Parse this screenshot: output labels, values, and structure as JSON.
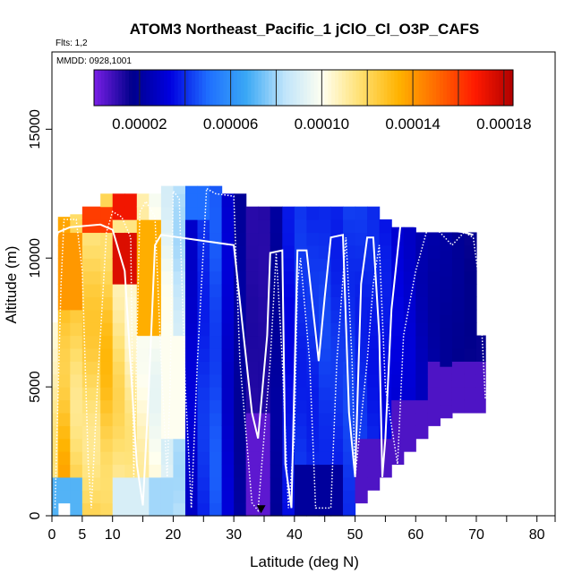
{
  "chart_data": {
    "type": "heatmap",
    "title": "ATOM3 Northeast_Pacific_1 jClO_Cl_O3P_CAFS",
    "subtitle_flights": "Flts: 1,2",
    "subtitle_dates": "MMDD: 0928,1001",
    "xlabel": "Latitude (deg N)",
    "ylabel": "Altitude (m)",
    "xlim": [
      0,
      83
    ],
    "ylim": [
      0,
      18000
    ],
    "x_ticks": [
      0,
      5,
      10,
      20,
      30,
      40,
      50,
      60,
      70,
      80
    ],
    "x_minor_ticks": [
      15,
      25,
      35,
      45,
      55,
      65,
      75,
      83
    ],
    "y_ticks": [
      0,
      5000,
      10000,
      15000
    ],
    "colorbar": {
      "min": 0.0,
      "max": 0.000184,
      "tick_values": [
        2e-05,
        6e-05,
        0.0001,
        0.00014,
        0.00018
      ],
      "tick_labels": [
        "0.00002",
        "0.00006",
        "0.00010",
        "0.00014",
        "0.00018"
      ],
      "divisions": [
        2e-05,
        4e-05,
        6e-05,
        8e-05,
        0.0001,
        0.00012,
        0.00014,
        0.00016,
        0.00018
      ]
    },
    "colors": [
      "#7a1fe6",
      "#00008b",
      "#0000e0",
      "#1f6fff",
      "#3aa8f5",
      "#bfe4fb",
      "#fffff0",
      "#ffe070",
      "#ffb300",
      "#ff6a00",
      "#ff1a00",
      "#b00000"
    ],
    "columns": [
      {
        "x": [
          -1,
          1
        ],
        "top": 7500,
        "bottom": 0,
        "base": 0.00011,
        "slope": 0.0
      },
      {
        "x": [
          1,
          3
        ],
        "top": 11600,
        "bottom": 500,
        "base": 0.00013,
        "slope": 0.0
      },
      {
        "x": [
          3,
          5
        ],
        "top": 11700,
        "bottom": 0,
        "base": 0.00012,
        "slope": 0.0
      },
      {
        "x": [
          5,
          8
        ],
        "top": 12000,
        "bottom": 0,
        "base": 0.00012,
        "slope": 0.0
      },
      {
        "x": [
          8,
          10
        ],
        "top": 12500,
        "bottom": 0,
        "base": 0.000125,
        "slope": 0.0
      },
      {
        "x": [
          10,
          12
        ],
        "top": 12500,
        "bottom": 0,
        "base": 0.000115,
        "slope": 0.0
      },
      {
        "x": [
          12,
          14
        ],
        "top": 12500,
        "bottom": 0,
        "base": 0.00011,
        "slope": 0.0
      },
      {
        "x": [
          14,
          16
        ],
        "top": 12500,
        "bottom": 0,
        "base": 0.000105,
        "slope": 0.0
      },
      {
        "x": [
          16,
          18
        ],
        "top": 12500,
        "bottom": 0,
        "base": 0.0001,
        "slope": 0.0
      },
      {
        "x": [
          18,
          20
        ],
        "top": 12800,
        "bottom": 0,
        "base": 9.5e-05,
        "slope": 0.0
      },
      {
        "x": [
          20,
          22
        ],
        "top": 12800,
        "bottom": 0,
        "base": 8.5e-05,
        "slope": 0.0
      },
      {
        "x": [
          22,
          24
        ],
        "top": 12800,
        "bottom": 0,
        "base": 3e-05,
        "slope": 0.0
      },
      {
        "x": [
          24,
          26
        ],
        "top": 12800,
        "bottom": 0,
        "base": 4e-05,
        "slope": 0.0
      },
      {
        "x": [
          26,
          28
        ],
        "top": 12800,
        "bottom": 0,
        "base": 4.5e-05,
        "slope": 0.0
      },
      {
        "x": [
          28,
          30
        ],
        "top": 12500,
        "bottom": 0,
        "base": 3e-05,
        "slope": 0.0
      },
      {
        "x": [
          30,
          32
        ],
        "top": 12500,
        "bottom": 0,
        "base": 2e-05,
        "slope": 0.0
      },
      {
        "x": [
          32,
          34
        ],
        "top": 12000,
        "bottom": 0,
        "base": 1.2e-05,
        "slope": 0.0
      },
      {
        "x": [
          34,
          36
        ],
        "top": 12000,
        "bottom": 0,
        "base": 1.2e-05,
        "slope": 0.0
      },
      {
        "x": [
          36,
          38
        ],
        "top": 12000,
        "bottom": 0,
        "base": 2e-05,
        "slope": 0.0
      },
      {
        "x": [
          38,
          40
        ],
        "top": 12000,
        "bottom": 0,
        "base": 3.5e-05,
        "slope": 0.0
      },
      {
        "x": [
          40,
          42
        ],
        "top": 12000,
        "bottom": 0,
        "base": 4e-05,
        "slope": 0.0
      },
      {
        "x": [
          42,
          44
        ],
        "top": 12000,
        "bottom": 0,
        "base": 4e-05,
        "slope": 0.0
      },
      {
        "x": [
          44,
          46
        ],
        "top": 12000,
        "bottom": 0,
        "base": 4.2e-05,
        "slope": 0.0
      },
      {
        "x": [
          46,
          48
        ],
        "top": 12000,
        "bottom": 0,
        "base": 4e-05,
        "slope": 0.0
      },
      {
        "x": [
          48,
          50
        ],
        "top": 12000,
        "bottom": 0,
        "base": 4.2e-05,
        "slope": 0.0
      },
      {
        "x": [
          50,
          52
        ],
        "top": 12000,
        "bottom": 500,
        "base": 4e-05,
        "slope": 0.0
      },
      {
        "x": [
          52,
          54
        ],
        "top": 12000,
        "bottom": 1000,
        "base": 3.8e-05,
        "slope": 0.0
      },
      {
        "x": [
          54,
          56
        ],
        "top": 11500,
        "bottom": 1500,
        "base": 3.6e-05,
        "slope": 0.0
      },
      {
        "x": [
          56,
          58
        ],
        "top": 11200,
        "bottom": 2000,
        "base": 3.2e-05,
        "slope": 0.0
      },
      {
        "x": [
          58,
          60
        ],
        "top": 11200,
        "bottom": 2500,
        "base": 3e-05,
        "slope": 0.0
      },
      {
        "x": [
          60,
          62
        ],
        "top": 11000,
        "bottom": 3000,
        "base": 2.5e-05,
        "slope": 0.0
      },
      {
        "x": [
          62,
          64
        ],
        "top": 11000,
        "bottom": 3500,
        "base": 2.2e-05,
        "slope": 0.0
      },
      {
        "x": [
          64,
          66
        ],
        "top": 11000,
        "bottom": 3800,
        "base": 2e-05,
        "slope": 0.0
      },
      {
        "x": [
          66,
          68
        ],
        "top": 11000,
        "bottom": 4000,
        "base": 1.8e-05,
        "slope": 0.0
      },
      {
        "x": [
          68,
          70
        ],
        "top": 11000,
        "bottom": 4000,
        "base": 1.6e-05,
        "slope": 0.0
      },
      {
        "x": [
          70,
          71.5
        ],
        "top": 7000,
        "bottom": 4000,
        "base": 1.5e-05,
        "slope": 0.0
      }
    ],
    "special_cells": [
      {
        "x": [
          10,
          14
        ],
        "y": [
          11500,
          12500
        ],
        "value": 0.00017
      },
      {
        "x": [
          5,
          10
        ],
        "y": [
          11000,
          12000
        ],
        "value": 0.00016
      },
      {
        "x": [
          10,
          18
        ],
        "y": [
          9000,
          11000
        ],
        "value": 0.000175
      },
      {
        "x": [
          2,
          5
        ],
        "y": [
          8000,
          11000
        ],
        "value": 0.00014
      },
      {
        "x": [
          14,
          18
        ],
        "y": [
          7000,
          11500
        ],
        "value": 0.000135
      },
      {
        "x": [
          18,
          22
        ],
        "y": [
          3000,
          7000
        ],
        "value": 0.0001
      },
      {
        "x": [
          0,
          5
        ],
        "y": [
          0,
          1500
        ],
        "value": 7e-05
      },
      {
        "x": [
          10,
          16
        ],
        "y": [
          0,
          1500
        ],
        "value": 9e-05
      },
      {
        "x": [
          16,
          20
        ],
        "y": [
          0,
          1500
        ],
        "value": 8e-05
      },
      {
        "x": [
          33,
          35
        ],
        "y": [
          0,
          4000
        ],
        "value": 4e-06
      },
      {
        "x": [
          50,
          56
        ],
        "y": [
          0,
          3000
        ],
        "value": 6e-06
      },
      {
        "x": [
          56,
          62
        ],
        "y": [
          2000,
          4500
        ],
        "value": 6e-06
      },
      {
        "x": [
          62,
          71.5
        ],
        "y": [
          3500,
          6000
        ],
        "value": 6e-06
      },
      {
        "x": [
          22,
          26
        ],
        "y": [
          11500,
          12800
        ],
        "value": 5e-05
      },
      {
        "x": [
          40,
          48
        ],
        "y": [
          0,
          2000
        ],
        "value": 2e-05
      }
    ],
    "flight_track_solid": [
      [
        -1,
        9000
      ],
      [
        1,
        11000
      ],
      [
        3,
        11200
      ],
      [
        8,
        11300
      ],
      [
        10,
        11100
      ],
      [
        12,
        9500
      ],
      [
        14,
        2000
      ],
      [
        15,
        400
      ],
      [
        16,
        5000
      ],
      [
        17,
        10500
      ],
      [
        18,
        10900
      ],
      [
        30,
        10500
      ],
      [
        33,
        4000
      ],
      [
        34,
        3000
      ],
      [
        35.5,
        7000
      ],
      [
        36,
        10200
      ],
      [
        38,
        10300
      ],
      [
        38.5,
        2000
      ],
      [
        39.5,
        300
      ],
      [
        40.5,
        10300
      ],
      [
        42,
        10300
      ],
      [
        44,
        6000
      ],
      [
        45,
        8500
      ],
      [
        46,
        10800
      ],
      [
        48,
        10900
      ],
      [
        49,
        4000
      ],
      [
        50,
        1500
      ],
      [
        51,
        9000
      ],
      [
        52,
        10800
      ],
      [
        53,
        10800
      ],
      [
        54,
        7000
      ],
      [
        54.5,
        1500
      ],
      [
        55,
        3000
      ],
      [
        56,
        8000
      ],
      [
        57.5,
        11300
      ],
      [
        68,
        11000
      ],
      [
        69.5,
        10900
      ]
    ],
    "flight_track_dotted": [
      [
        0.5,
        300
      ],
      [
        1.5,
        9000
      ],
      [
        2,
        11500
      ],
      [
        4,
        11500
      ],
      [
        5,
        9500
      ],
      [
        6,
        2000
      ],
      [
        6.5,
        300
      ],
      [
        7.5,
        5000
      ],
      [
        9,
        11000
      ],
      [
        10,
        11800
      ],
      [
        11.5,
        11600
      ],
      [
        13,
        10800
      ],
      [
        13.5,
        1500
      ],
      [
        14.5,
        11800
      ],
      [
        15.5,
        12200
      ],
      [
        17,
        11600
      ],
      [
        18,
        6000
      ],
      [
        19,
        1500
      ],
      [
        19.5,
        5000
      ],
      [
        20,
        12600
      ],
      [
        21,
        12300
      ],
      [
        22,
        5000
      ],
      [
        23,
        300
      ],
      [
        24,
        6000
      ],
      [
        25.5,
        12700
      ],
      [
        27,
        12500
      ],
      [
        30,
        12400
      ],
      [
        31,
        6000
      ],
      [
        33,
        500
      ],
      [
        34,
        200
      ],
      [
        36,
        6000
      ],
      [
        37,
        10200
      ],
      [
        38,
        6000
      ],
      [
        39,
        300
      ],
      [
        40,
        3000
      ],
      [
        40.5,
        9000
      ],
      [
        41,
        10000
      ],
      [
        42.5,
        6000
      ],
      [
        43.5,
        300
      ],
      [
        46,
        300
      ],
      [
        47,
        6000
      ],
      [
        48.5,
        10800
      ],
      [
        49.5,
        6000
      ],
      [
        50,
        1500
      ],
      [
        52,
        6000
      ],
      [
        53,
        9000
      ],
      [
        54,
        10500
      ],
      [
        55,
        5000
      ],
      [
        57,
        2000
      ],
      [
        58,
        7000
      ],
      [
        60,
        9500
      ],
      [
        62,
        11200
      ],
      [
        64,
        11000
      ],
      [
        66,
        10500
      ],
      [
        68,
        11000
      ],
      [
        69.5,
        10800
      ],
      [
        70.5,
        9000
      ],
      [
        71.5,
        4500
      ]
    ],
    "marker": {
      "x": 34.5,
      "y": 200
    }
  }
}
